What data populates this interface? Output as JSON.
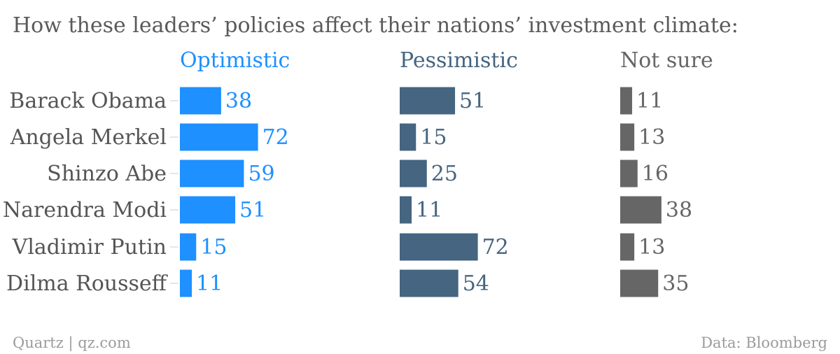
{
  "chart_data": {
    "type": "bar",
    "orientation": "horizontal",
    "title": "How these leaders’ policies affect their nations’ investment climate:",
    "categories": [
      "Barack Obama",
      "Angela Merkel",
      "Shinzo Abe",
      "Narendra Modi",
      "Vladimir Putin",
      "Dilma Rousseff"
    ],
    "series": [
      {
        "name": "Optimistic",
        "color": "#1e90ff",
        "values": [
          38,
          72,
          59,
          51,
          15,
          11
        ]
      },
      {
        "name": "Pessimistic",
        "color": "#456580",
        "values": [
          51,
          15,
          25,
          11,
          72,
          54
        ]
      },
      {
        "name": "Not sure",
        "color": "#666666",
        "values": [
          11,
          13,
          16,
          38,
          13,
          35
        ]
      }
    ],
    "xlim": [
      0,
      100
    ],
    "grid": false,
    "legend": "none"
  },
  "footer": {
    "source_left": "Quartz | qz.com",
    "source_right": "Data: Bloomberg"
  }
}
